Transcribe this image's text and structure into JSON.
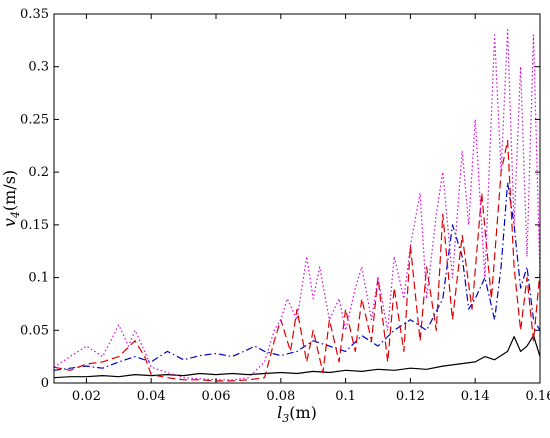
{
  "chart_data": {
    "type": "line",
    "title": "",
    "xlabel": {
      "var": "l",
      "sub": "3",
      "unit": "(m)"
    },
    "ylabel": {
      "var": "v",
      "sub": "4",
      "unit": "(m/s)"
    },
    "xlim": [
      0.01,
      0.16
    ],
    "ylim": [
      0,
      0.35
    ],
    "xticks": [
      {
        "value": 0.02,
        "label": "0.02"
      },
      {
        "value": 0.04,
        "label": "0.04"
      },
      {
        "value": 0.06,
        "label": "0.06"
      },
      {
        "value": 0.08,
        "label": "0.08"
      },
      {
        "value": 0.1,
        "label": "0.1"
      },
      {
        "value": 0.12,
        "label": "0.12"
      },
      {
        "value": 0.14,
        "label": "0.14"
      },
      {
        "value": 0.16,
        "label": "0.16"
      }
    ],
    "yticks": [
      {
        "value": 0,
        "label": "0"
      },
      {
        "value": 0.05,
        "label": "0.05"
      },
      {
        "value": 0.1,
        "label": "0.1"
      },
      {
        "value": 0.15,
        "label": "0.15"
      },
      {
        "value": 0.2,
        "label": "0.2"
      },
      {
        "value": 0.25,
        "label": "0.25"
      },
      {
        "value": 0.3,
        "label": "0.3"
      },
      {
        "value": 0.35,
        "label": "0.35"
      }
    ],
    "grid": false,
    "legend": "none",
    "series": [
      {
        "color": "#000000",
        "style": "solid",
        "points": [
          [
            0.01,
            0.005
          ],
          [
            0.015,
            0.006
          ],
          [
            0.02,
            0.006
          ],
          [
            0.025,
            0.007
          ],
          [
            0.03,
            0.006
          ],
          [
            0.035,
            0.008
          ],
          [
            0.04,
            0.007
          ],
          [
            0.045,
            0.008
          ],
          [
            0.05,
            0.007
          ],
          [
            0.055,
            0.009
          ],
          [
            0.06,
            0.008
          ],
          [
            0.065,
            0.009
          ],
          [
            0.07,
            0.008
          ],
          [
            0.075,
            0.009
          ],
          [
            0.08,
            0.01
          ],
          [
            0.085,
            0.009
          ],
          [
            0.09,
            0.011
          ],
          [
            0.095,
            0.01
          ],
          [
            0.1,
            0.012
          ],
          [
            0.105,
            0.011
          ],
          [
            0.11,
            0.013
          ],
          [
            0.115,
            0.012
          ],
          [
            0.12,
            0.014
          ],
          [
            0.125,
            0.013
          ],
          [
            0.13,
            0.016
          ],
          [
            0.135,
            0.018
          ],
          [
            0.14,
            0.02
          ],
          [
            0.143,
            0.025
          ],
          [
            0.146,
            0.022
          ],
          [
            0.15,
            0.03
          ],
          [
            0.152,
            0.044
          ],
          [
            0.154,
            0.03
          ],
          [
            0.156,
            0.035
          ],
          [
            0.158,
            0.045
          ],
          [
            0.16,
            0.025
          ]
        ]
      },
      {
        "color": "#0000cc",
        "style": "dashdot",
        "points": [
          [
            0.01,
            0.012
          ],
          [
            0.015,
            0.014
          ],
          [
            0.02,
            0.016
          ],
          [
            0.025,
            0.014
          ],
          [
            0.03,
            0.02
          ],
          [
            0.035,
            0.025
          ],
          [
            0.04,
            0.02
          ],
          [
            0.045,
            0.03
          ],
          [
            0.05,
            0.022
          ],
          [
            0.055,
            0.026
          ],
          [
            0.06,
            0.028
          ],
          [
            0.065,
            0.025
          ],
          [
            0.07,
            0.032
          ],
          [
            0.072,
            0.035
          ],
          [
            0.075,
            0.03
          ],
          [
            0.08,
            0.026
          ],
          [
            0.085,
            0.03
          ],
          [
            0.09,
            0.04
          ],
          [
            0.095,
            0.035
          ],
          [
            0.1,
            0.03
          ],
          [
            0.105,
            0.045
          ],
          [
            0.11,
            0.035
          ],
          [
            0.115,
            0.05
          ],
          [
            0.12,
            0.06
          ],
          [
            0.125,
            0.05
          ],
          [
            0.13,
            0.08
          ],
          [
            0.133,
            0.15
          ],
          [
            0.136,
            0.12
          ],
          [
            0.138,
            0.07
          ],
          [
            0.14,
            0.08
          ],
          [
            0.143,
            0.1
          ],
          [
            0.146,
            0.06
          ],
          [
            0.148,
            0.11
          ],
          [
            0.15,
            0.19
          ],
          [
            0.152,
            0.15
          ],
          [
            0.154,
            0.09
          ],
          [
            0.156,
            0.11
          ],
          [
            0.158,
            0.06
          ],
          [
            0.16,
            0.05
          ]
        ]
      },
      {
        "color": "#dd0000",
        "style": "dashed",
        "points": [
          [
            0.01,
            0.015
          ],
          [
            0.015,
            0.012
          ],
          [
            0.02,
            0.018
          ],
          [
            0.025,
            0.02
          ],
          [
            0.03,
            0.025
          ],
          [
            0.035,
            0.04
          ],
          [
            0.038,
            0.025
          ],
          [
            0.04,
            0.008
          ],
          [
            0.045,
            0.005
          ],
          [
            0.05,
            0.003
          ],
          [
            0.055,
            0.003
          ],
          [
            0.06,
            0.002
          ],
          [
            0.065,
            0.002
          ],
          [
            0.07,
            0.003
          ],
          [
            0.075,
            0.005
          ],
          [
            0.078,
            0.04
          ],
          [
            0.08,
            0.06
          ],
          [
            0.083,
            0.03
          ],
          [
            0.085,
            0.07
          ],
          [
            0.088,
            0.02
          ],
          [
            0.09,
            0.05
          ],
          [
            0.093,
            0.01
          ],
          [
            0.095,
            0.06
          ],
          [
            0.098,
            0.02
          ],
          [
            0.1,
            0.07
          ],
          [
            0.103,
            0.03
          ],
          [
            0.105,
            0.08
          ],
          [
            0.108,
            0.04
          ],
          [
            0.11,
            0.1
          ],
          [
            0.113,
            0.02
          ],
          [
            0.115,
            0.09
          ],
          [
            0.118,
            0.03
          ],
          [
            0.12,
            0.13
          ],
          [
            0.123,
            0.04
          ],
          [
            0.125,
            0.11
          ],
          [
            0.128,
            0.05
          ],
          [
            0.13,
            0.16
          ],
          [
            0.133,
            0.06
          ],
          [
            0.136,
            0.14
          ],
          [
            0.139,
            0.07
          ],
          [
            0.142,
            0.18
          ],
          [
            0.145,
            0.08
          ],
          [
            0.148,
            0.2
          ],
          [
            0.15,
            0.23
          ],
          [
            0.152,
            0.11
          ],
          [
            0.154,
            0.05
          ],
          [
            0.156,
            0.1
          ],
          [
            0.158,
            0.04
          ],
          [
            0.16,
            0.105
          ]
        ]
      },
      {
        "color": "#dd00dd",
        "style": "dotted",
        "points": [
          [
            0.01,
            0.015
          ],
          [
            0.015,
            0.025
          ],
          [
            0.02,
            0.035
          ],
          [
            0.025,
            0.025
          ],
          [
            0.03,
            0.055
          ],
          [
            0.033,
            0.035
          ],
          [
            0.035,
            0.05
          ],
          [
            0.038,
            0.03
          ],
          [
            0.04,
            0.015
          ],
          [
            0.045,
            0.01
          ],
          [
            0.05,
            0.005
          ],
          [
            0.055,
            0.004
          ],
          [
            0.06,
            0.003
          ],
          [
            0.065,
            0.003
          ],
          [
            0.07,
            0.005
          ],
          [
            0.075,
            0.02
          ],
          [
            0.078,
            0.05
          ],
          [
            0.08,
            0.06
          ],
          [
            0.082,
            0.08
          ],
          [
            0.085,
            0.06
          ],
          [
            0.088,
            0.12
          ],
          [
            0.09,
            0.08
          ],
          [
            0.092,
            0.11
          ],
          [
            0.095,
            0.06
          ],
          [
            0.098,
            0.08
          ],
          [
            0.1,
            0.05
          ],
          [
            0.103,
            0.09
          ],
          [
            0.105,
            0.11
          ],
          [
            0.108,
            0.06
          ],
          [
            0.11,
            0.1
          ],
          [
            0.113,
            0.05
          ],
          [
            0.115,
            0.12
          ],
          [
            0.118,
            0.08
          ],
          [
            0.12,
            0.13
          ],
          [
            0.123,
            0.18
          ],
          [
            0.125,
            0.08
          ],
          [
            0.128,
            0.16
          ],
          [
            0.13,
            0.2
          ],
          [
            0.133,
            0.1
          ],
          [
            0.136,
            0.22
          ],
          [
            0.138,
            0.15
          ],
          [
            0.14,
            0.25
          ],
          [
            0.143,
            0.1
          ],
          [
            0.146,
            0.33
          ],
          [
            0.148,
            0.2
          ],
          [
            0.15,
            0.335
          ],
          [
            0.152,
            0.15
          ],
          [
            0.154,
            0.3
          ],
          [
            0.156,
            0.12
          ],
          [
            0.158,
            0.33
          ],
          [
            0.16,
            0.1
          ]
        ]
      }
    ]
  }
}
